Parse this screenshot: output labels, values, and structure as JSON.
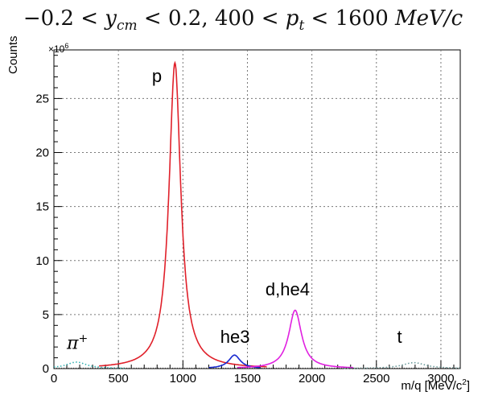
{
  "title": {
    "text": "−0.2 < y_cm < 0.2, 400 < p_t < 1600 MeV/c",
    "part1": "−0.2 < ",
    "y": "y",
    "ysub": "cm",
    "part2": " < 0.2, 400 < ",
    "p": "p",
    "psub": "t",
    "part3": " < 1600 ",
    "unit": "MeV/c"
  },
  "chart_data": {
    "type": "line",
    "title": "−0.2 < y_cm < 0.2, 400 < p_t < 1600 MeV/c",
    "xlabel": "m/q [MeV/c²]",
    "xlabel_main": "m/q [MeV/c",
    "xlabel_sup": "2",
    "xlabel_end": "]",
    "ylabel": "Counts",
    "ymultiplier": "×10",
    "ymultiplier_exp": "6",
    "xlim": [
      0,
      3150
    ],
    "ylim": [
      0,
      29.5
    ],
    "xticks": [
      0,
      500,
      1000,
      1500,
      2000,
      2500,
      3000
    ],
    "xtick_labels": [
      "0",
      "500",
      "1000",
      "1500",
      "2000",
      "2500",
      "3000"
    ],
    "yticks": [
      0,
      5,
      10,
      15,
      20,
      25
    ],
    "ytick_labels": [
      "0",
      "5",
      "10",
      "15",
      "20",
      "25"
    ],
    "grid": true,
    "series": [
      {
        "color": "#30b0b0",
        "peak_center": 175,
        "peak_height": 0.6,
        "peak_width": 95,
        "x_range": [
          0,
          560
        ],
        "dotted": true
      },
      {
        "color": "#e0202a",
        "peak_center": 938,
        "peak_height": 28.3,
        "peak_width": 55,
        "x_range": [
          350,
          1650
        ],
        "dotted": false
      },
      {
        "color": "#1a2bd0",
        "peak_center": 1400,
        "peak_height": 1.25,
        "peak_width": 55,
        "x_range": [
          1200,
          1600
        ],
        "dotted": false
      },
      {
        "color": "#e020e0",
        "peak_center": 1870,
        "peak_height": 5.4,
        "peak_width": 60,
        "x_range": [
          1420,
          2320
        ],
        "dotted": false
      },
      {
        "color": "#6a9a9a",
        "peak_center": 2790,
        "peak_height": 0.55,
        "peak_width": 110,
        "x_range": [
          2250,
          3150
        ],
        "dotted": true
      },
      {
        "color": "#404040",
        "peak_center": 2050,
        "peak_height": 0.0,
        "peak_width": 50,
        "x_range": [
          0,
          3150
        ],
        "dotted": true
      }
    ],
    "annotations": [
      {
        "text": "p",
        "x": 760,
        "y": 27
      },
      {
        "text": "d,he4",
        "x": 1640,
        "y": 7.2
      },
      {
        "text": "he3",
        "x": 1290,
        "y": 2.8
      },
      {
        "text": "t",
        "x": 2660,
        "y": 2.8
      },
      {
        "text": "π",
        "sup": "+",
        "x": 100,
        "y": 2.3
      }
    ]
  }
}
